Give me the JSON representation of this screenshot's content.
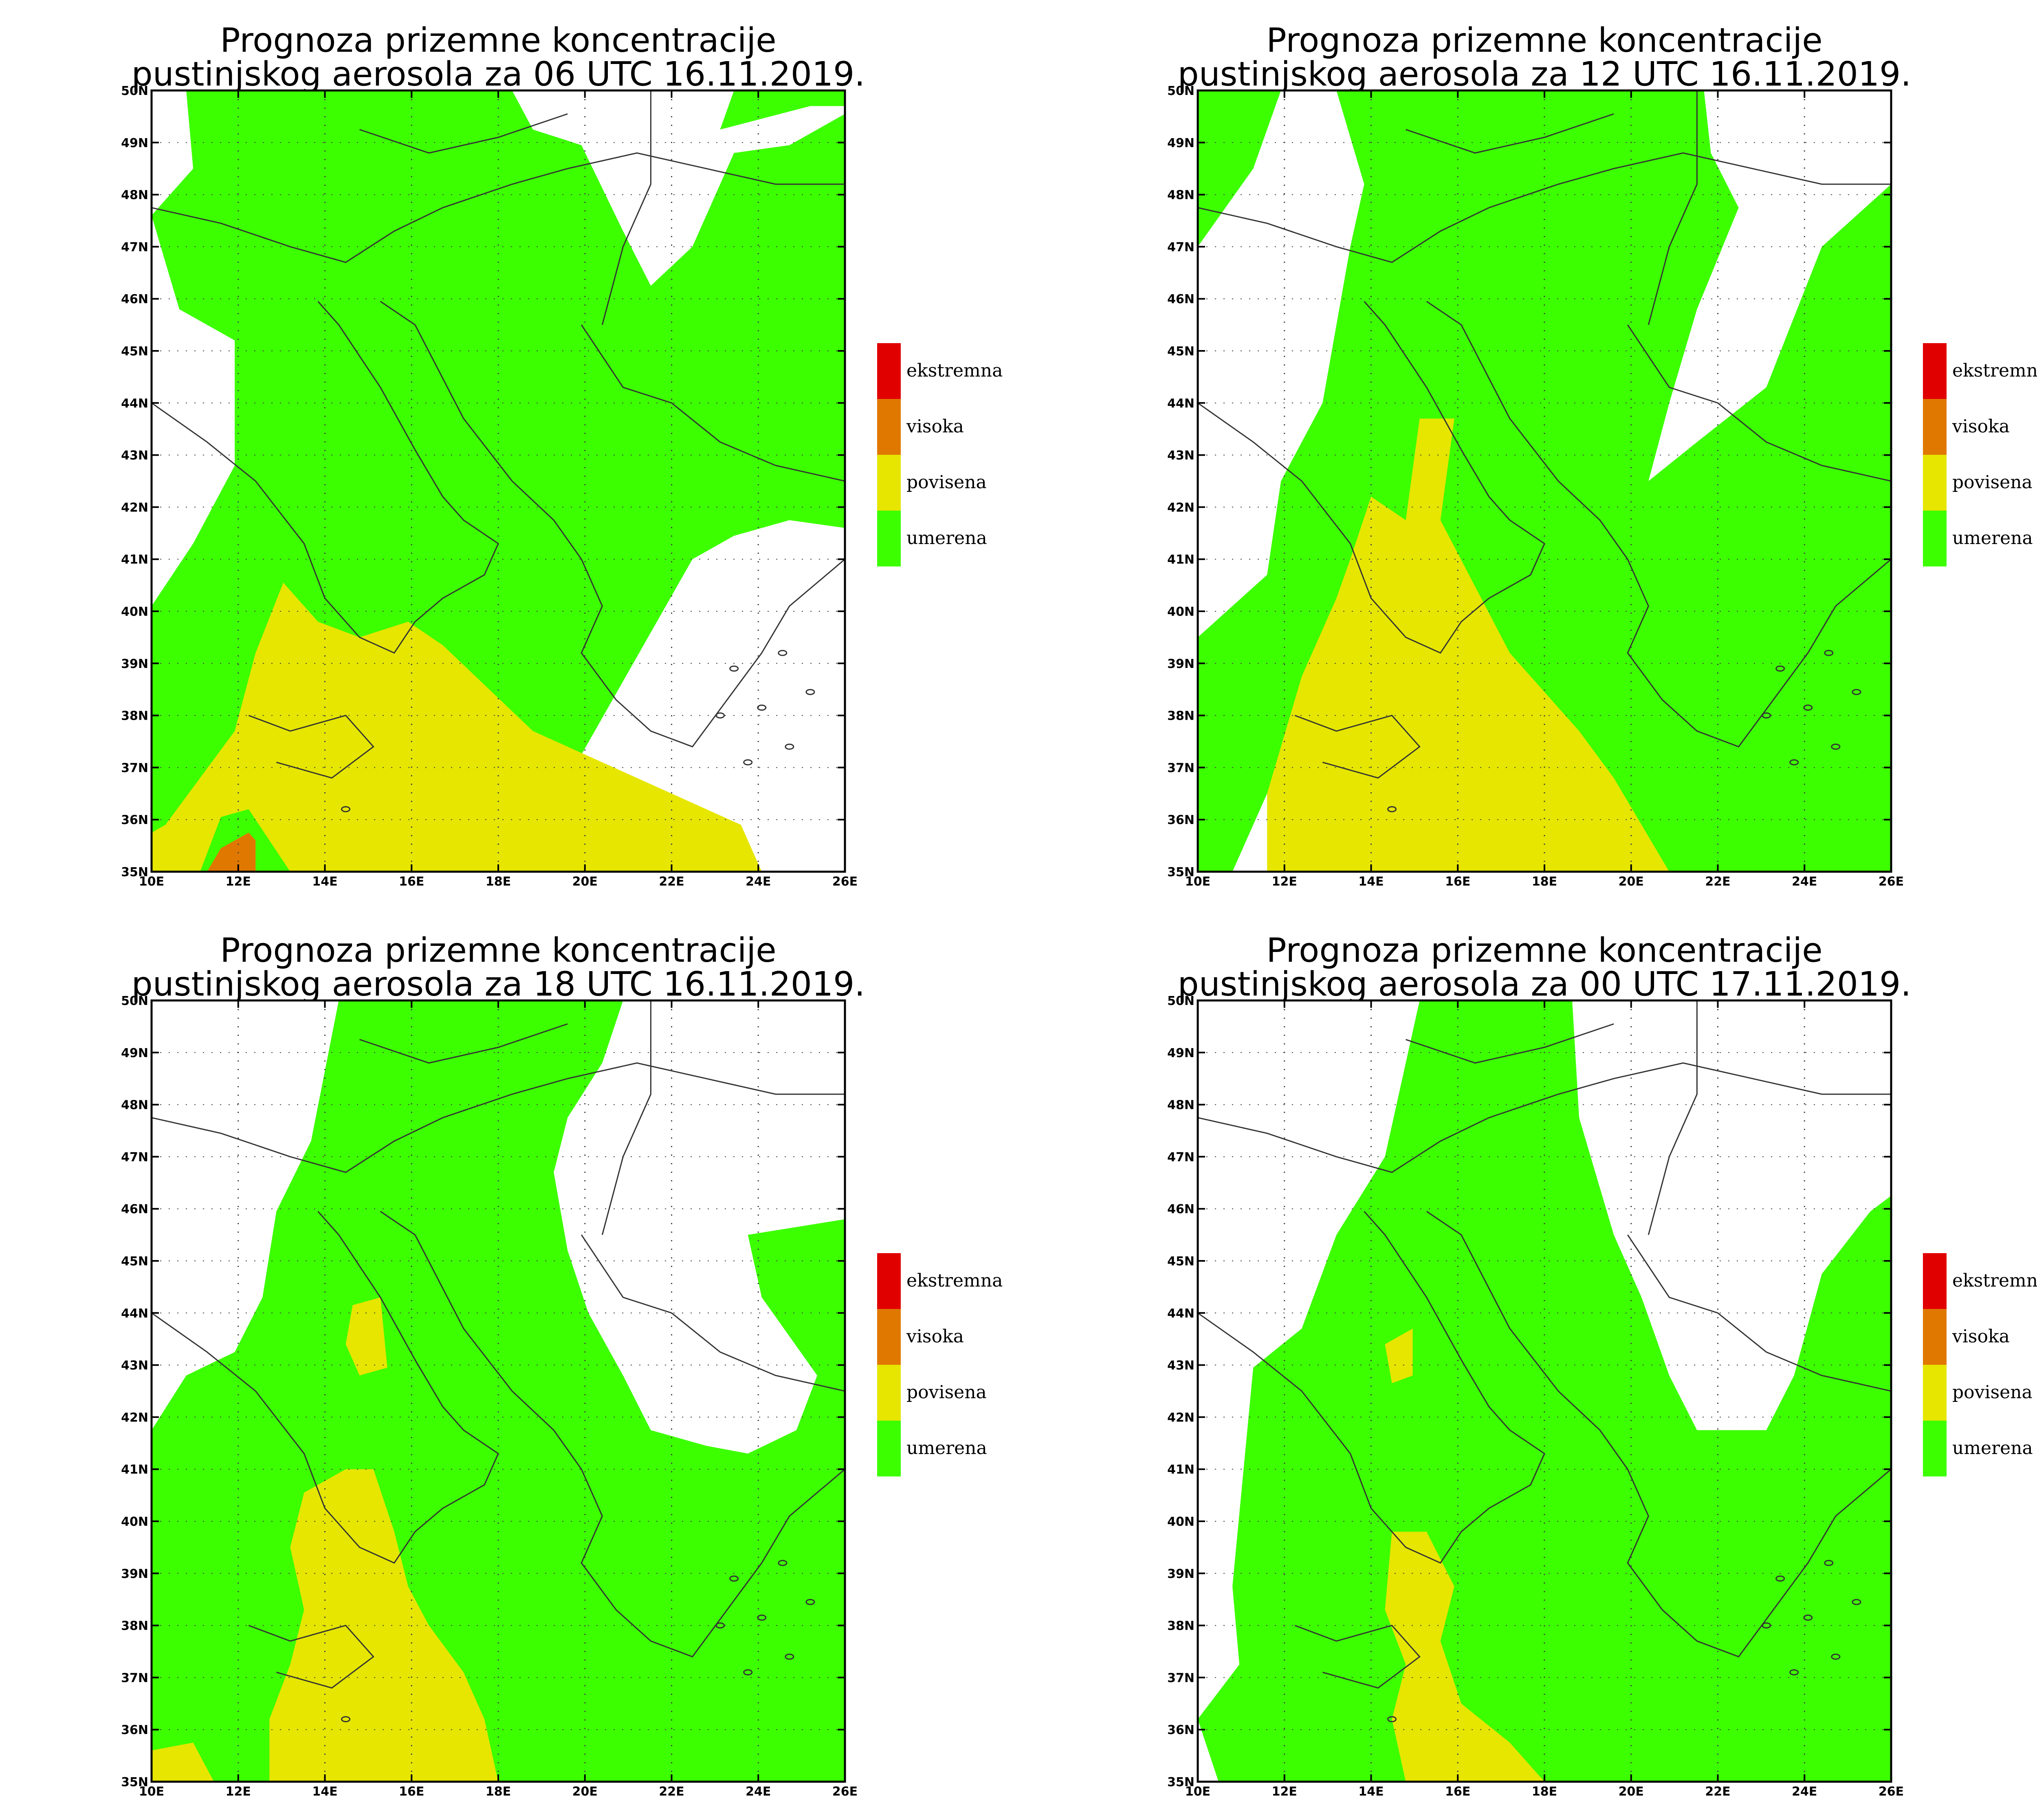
{
  "colors": {
    "ekstremna": "#e00000",
    "visoka": "#e07800",
    "povisena": "#e6e600",
    "umerena": "#3cff00",
    "border": "#333333",
    "grid": "#444444"
  },
  "legend": [
    {
      "key": "ekstremna",
      "label": "ekstremna"
    },
    {
      "key": "visoka",
      "label": "visoka"
    },
    {
      "key": "povisena",
      "label": "povisena"
    },
    {
      "key": "umerena",
      "label": "umerena"
    }
  ],
  "lat_ticks": [
    "50N",
    "49N",
    "48N",
    "47N",
    "46N",
    "45N",
    "44N",
    "43N",
    "42N",
    "41N",
    "40N",
    "39N",
    "38N",
    "37N",
    "36N",
    "35N"
  ],
  "lon_ticks": [
    "10E",
    "12E",
    "14E",
    "16E",
    "18E",
    "20E",
    "22E",
    "24E",
    "26E"
  ],
  "panels": [
    {
      "title_line1": "Prognoza prizemne koncentracije",
      "title_line2": "pustinjskog aerosola za 06 UTC 16.11.2019."
    },
    {
      "title_line1": "Prognoza prizemne koncentracije",
      "title_line2": "pustinjskog aerosola za 12 UTC 16.11.2019."
    },
    {
      "title_line1": "Prognoza prizemne koncentracije",
      "title_line2": "pustinjskog aerosola za 18 UTC 16.11.2019."
    },
    {
      "title_line1": "Prognoza prizemne koncentracije",
      "title_line2": "pustinjskog aerosola za 00 UTC 17.11.2019."
    }
  ]
}
